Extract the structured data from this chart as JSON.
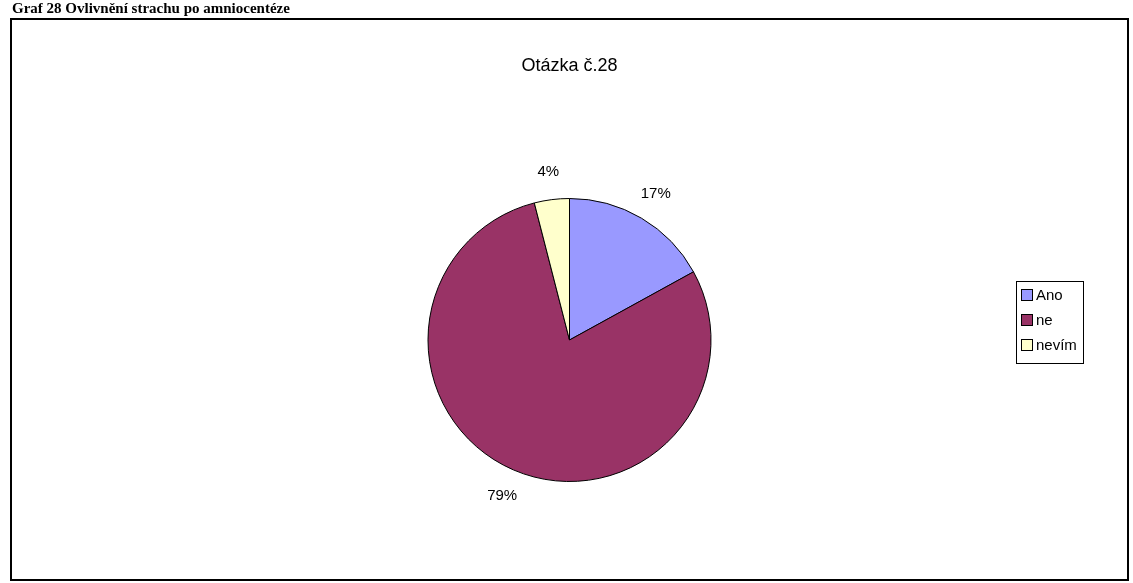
{
  "chart_data": {
    "type": "pie",
    "title": "Otázka č.28",
    "annotations": [
      "Graf 28 Ovlivnění strachu po amniocentéze"
    ],
    "categories": [
      "Ano",
      "ne",
      "nevím"
    ],
    "values": [
      17,
      79,
      4
    ],
    "colors": [
      "#9999ff",
      "#993366",
      "#ffffcc"
    ],
    "value_labels": [
      "17%",
      "79%",
      "4%"
    ],
    "legend": "right"
  }
}
